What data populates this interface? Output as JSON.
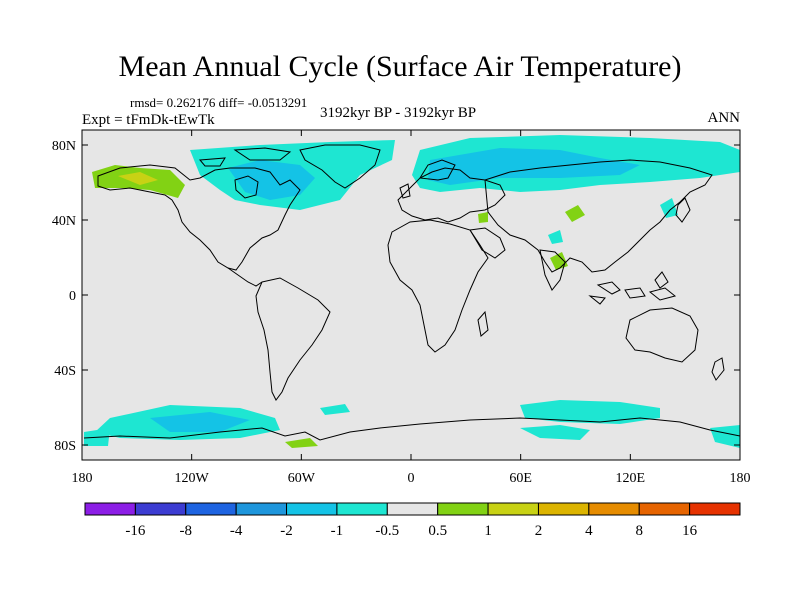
{
  "title": "Mean Annual Cycle (Surface Air Temperature)",
  "stats": "rmsd= 0.262176 diff= -0.0513291",
  "expt": "Expt = tFmDk-tEwTk",
  "period": "3192kyr BP - 3192kyr BP",
  "season": "ANN",
  "map": {
    "lat_ticks": [
      "80N",
      "40N",
      "0",
      "40S",
      "80S"
    ],
    "lon_ticks": [
      "180",
      "120W",
      "60W",
      "0",
      "60E",
      "120E",
      "180"
    ],
    "background_color": "#e6e6e6"
  },
  "colorbar": {
    "colors": [
      "#8c1ee6",
      "#3c3cd2",
      "#1e64e1",
      "#1e96dc",
      "#14c3e6",
      "#1ee6d2",
      "#e6e6e6",
      "#82d214",
      "#c8d214",
      "#dcb400",
      "#e68c00",
      "#e66400",
      "#e63200"
    ],
    "labels": [
      "-16",
      "-8",
      "-4",
      "-2",
      "-1",
      "-0.5",
      "0.5",
      "1",
      "2",
      "4",
      "8",
      "16"
    ]
  }
}
